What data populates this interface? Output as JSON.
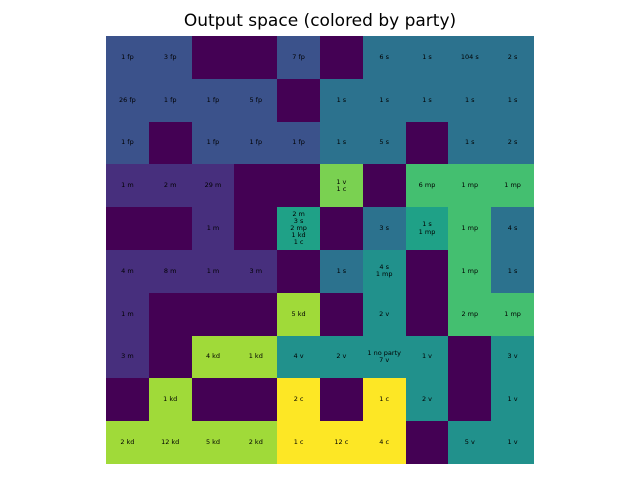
{
  "chart_data": {
    "type": "heatmap",
    "title": "Output space (colored by party)",
    "rows": 10,
    "cols": 10,
    "colormap": "viridis",
    "party_colors": {
      "empty": "#440154",
      "m": "#472f7d",
      "fp": "#3b528b",
      "s": "#2c728e",
      "v": "#21918c",
      "mix": "#1fa187",
      "mp": "#44bf70",
      "kd": "#a0da39",
      "mixed-vc": "#7ad151",
      "c": "#fde725"
    },
    "cells": [
      [
        {
          "label": "1 fp",
          "party": "fp"
        },
        {
          "label": "3 fp",
          "party": "fp"
        },
        {
          "label": "",
          "party": "empty"
        },
        {
          "label": "",
          "party": "empty"
        },
        {
          "label": "7 fp",
          "party": "fp"
        },
        {
          "label": "",
          "party": "empty"
        },
        {
          "label": "6 s",
          "party": "s"
        },
        {
          "label": "1 s",
          "party": "s"
        },
        {
          "label": "104 s",
          "party": "s"
        },
        {
          "label": "2 s",
          "party": "s"
        }
      ],
      [
        {
          "label": "26 fp",
          "party": "fp"
        },
        {
          "label": "1 fp",
          "party": "fp"
        },
        {
          "label": "1 fp",
          "party": "fp"
        },
        {
          "label": "5 fp",
          "party": "fp"
        },
        {
          "label": "",
          "party": "empty"
        },
        {
          "label": "1 s",
          "party": "s"
        },
        {
          "label": "1 s",
          "party": "s"
        },
        {
          "label": "1 s",
          "party": "s"
        },
        {
          "label": "1 s",
          "party": "s"
        },
        {
          "label": "1 s",
          "party": "s"
        }
      ],
      [
        {
          "label": "1 fp",
          "party": "fp"
        },
        {
          "label": "",
          "party": "empty"
        },
        {
          "label": "1 fp",
          "party": "fp"
        },
        {
          "label": "1 fp",
          "party": "fp"
        },
        {
          "label": "1 fp",
          "party": "fp"
        },
        {
          "label": "1 s",
          "party": "s"
        },
        {
          "label": "5 s",
          "party": "s"
        },
        {
          "label": "",
          "party": "empty"
        },
        {
          "label": "1 s",
          "party": "s"
        },
        {
          "label": "2 s",
          "party": "s"
        }
      ],
      [
        {
          "label": "1 m",
          "party": "m"
        },
        {
          "label": "2 m",
          "party": "m"
        },
        {
          "label": "29 m",
          "party": "m"
        },
        {
          "label": "",
          "party": "empty"
        },
        {
          "label": "",
          "party": "empty"
        },
        {
          "label": "1 v\n1 c",
          "party": "mixed-vc"
        },
        {
          "label": "",
          "party": "empty"
        },
        {
          "label": "6 mp",
          "party": "mp"
        },
        {
          "label": "1 mp",
          "party": "mp"
        },
        {
          "label": "1 mp",
          "party": "mp"
        }
      ],
      [
        {
          "label": "",
          "party": "empty"
        },
        {
          "label": "",
          "party": "empty"
        },
        {
          "label": "1 m",
          "party": "m"
        },
        {
          "label": "",
          "party": "empty"
        },
        {
          "label": "2 m\n3 s\n2 mp\n1 kd\n1 c",
          "party": "mix"
        },
        {
          "label": "",
          "party": "empty"
        },
        {
          "label": "3 s",
          "party": "s"
        },
        {
          "label": "1 s\n1 mp",
          "party": "mix"
        },
        {
          "label": "1 mp",
          "party": "mp"
        },
        {
          "label": "4 s",
          "party": "s"
        }
      ],
      [
        {
          "label": "4 m",
          "party": "m"
        },
        {
          "label": "8 m",
          "party": "m"
        },
        {
          "label": "1 m",
          "party": "m"
        },
        {
          "label": "3 m",
          "party": "m"
        },
        {
          "label": "",
          "party": "empty"
        },
        {
          "label": "1 s",
          "party": "s"
        },
        {
          "label": "4 s\n1 mp",
          "party": "v"
        },
        {
          "label": "",
          "party": "empty"
        },
        {
          "label": "1 mp",
          "party": "mp"
        },
        {
          "label": "1 s",
          "party": "s"
        }
      ],
      [
        {
          "label": "1 m",
          "party": "m"
        },
        {
          "label": "",
          "party": "empty"
        },
        {
          "label": "",
          "party": "empty"
        },
        {
          "label": "",
          "party": "empty"
        },
        {
          "label": "5 kd",
          "party": "kd"
        },
        {
          "label": "",
          "party": "empty"
        },
        {
          "label": "2 v",
          "party": "v"
        },
        {
          "label": "",
          "party": "empty"
        },
        {
          "label": "2 mp",
          "party": "mp"
        },
        {
          "label": "1 mp",
          "party": "mp"
        }
      ],
      [
        {
          "label": "3 m",
          "party": "m"
        },
        {
          "label": "",
          "party": "empty"
        },
        {
          "label": "4 kd",
          "party": "kd"
        },
        {
          "label": "1 kd",
          "party": "kd"
        },
        {
          "label": "4 v",
          "party": "v"
        },
        {
          "label": "2 v",
          "party": "v"
        },
        {
          "label": "1 no party\n7 v",
          "party": "v"
        },
        {
          "label": "1 v",
          "party": "v"
        },
        {
          "label": "",
          "party": "empty"
        },
        {
          "label": "3 v",
          "party": "v"
        }
      ],
      [
        {
          "label": "",
          "party": "empty"
        },
        {
          "label": "1 kd",
          "party": "kd"
        },
        {
          "label": "",
          "party": "empty"
        },
        {
          "label": "",
          "party": "empty"
        },
        {
          "label": "2 c",
          "party": "c"
        },
        {
          "label": "",
          "party": "empty"
        },
        {
          "label": "1 c",
          "party": "c"
        },
        {
          "label": "2 v",
          "party": "v"
        },
        {
          "label": "",
          "party": "empty"
        },
        {
          "label": "1 v",
          "party": "v"
        }
      ],
      [
        {
          "label": "2 kd",
          "party": "kd"
        },
        {
          "label": "12 kd",
          "party": "kd"
        },
        {
          "label": "5 kd",
          "party": "kd"
        },
        {
          "label": "2 kd",
          "party": "kd"
        },
        {
          "label": "1 c",
          "party": "c"
        },
        {
          "label": "12 c",
          "party": "c"
        },
        {
          "label": "4 c",
          "party": "c"
        },
        {
          "label": "",
          "party": "empty"
        },
        {
          "label": "5 v",
          "party": "v"
        },
        {
          "label": "1 v",
          "party": "v"
        }
      ]
    ]
  }
}
